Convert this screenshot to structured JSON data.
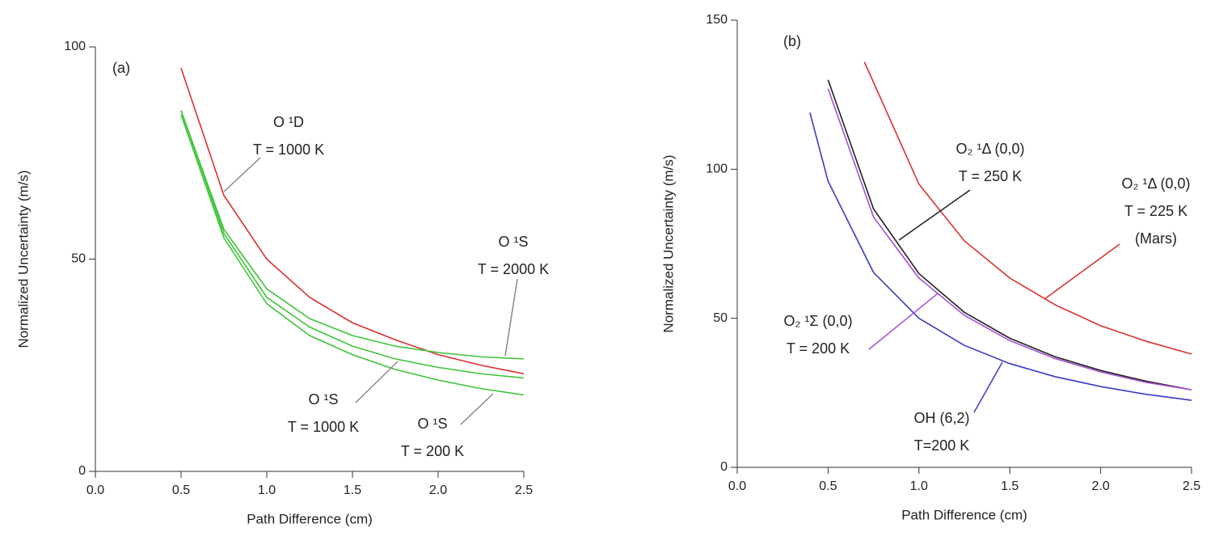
{
  "chart_data": [
    {
      "type": "line",
      "label": "(a)",
      "xlabel": "Path Difference (cm)",
      "ylabel": "Normalized Uncertainty (m/s)",
      "xlim": [
        0,
        2.5
      ],
      "ylim": [
        0,
        100
      ],
      "xticks": [
        {
          "value": 0,
          "label": "0.0"
        },
        0.5,
        {
          "value": 1,
          "label": "1.0"
        },
        1.5,
        {
          "value": 2,
          "label": "2.0"
        },
        2.5
      ],
      "yticks": [
        0,
        50,
        100
      ],
      "series": [
        {
          "color": "#d9302f",
          "x": [
            0.5,
            0.75,
            1.0,
            1.25,
            1.5,
            1.75,
            2.0,
            2.25,
            2.5
          ],
          "values": [
            95,
            65,
            50,
            41,
            35,
            31,
            27.5,
            25,
            23
          ]
        },
        {
          "color": "#3fc43a",
          "x": [
            0.5,
            0.75,
            1.0,
            1.25,
            1.5,
            1.75,
            2.0,
            2.25,
            2.5
          ],
          "values": [
            85,
            57,
            43,
            36,
            32,
            29.5,
            28,
            27,
            26.5
          ]
        },
        {
          "color": "#3fc43a",
          "x": [
            0.5,
            0.75,
            1.0,
            1.25,
            1.5,
            1.75,
            2.0,
            2.25,
            2.5
          ],
          "values": [
            85,
            56,
            41,
            34,
            29.5,
            26.5,
            24.5,
            23,
            22
          ]
        },
        {
          "color": "#3fc43a",
          "x": [
            0.5,
            0.75,
            1.0,
            1.25,
            1.5,
            1.75,
            2.0,
            2.25,
            2.5
          ],
          "values": [
            84,
            55,
            39.5,
            32,
            27.5,
            24,
            21.5,
            19.5,
            18
          ]
        }
      ],
      "annotations": [
        {
          "lines": [
            "O ¹D",
            "T = 1000 K"
          ],
          "color": "#888888"
        },
        {
          "lines": [
            "O ¹S",
            "T = 2000 K"
          ],
          "color": "#888888"
        },
        {
          "lines": [
            "O ¹S",
            "T = 1000 K"
          ],
          "color": "#888888"
        },
        {
          "lines": [
            "O ¹S",
            "T = 200 K"
          ],
          "color": "#888888"
        }
      ]
    },
    {
      "type": "line",
      "label": "(b)",
      "xlabel": "Path Difference (cm)",
      "ylabel": "Normalized Uncertainty (m/s)",
      "xlim": [
        0,
        2.5
      ],
      "ylim": [
        0,
        150
      ],
      "xticks": [
        {
          "value": 0,
          "label": "0.0"
        },
        0.5,
        {
          "value": 1,
          "label": "1.0"
        },
        1.5,
        {
          "value": 2,
          "label": "2.0"
        },
        2.5
      ],
      "yticks": [
        0,
        50,
        100,
        150
      ],
      "series": [
        {
          "color": "#d9302f",
          "x": [
            0.7,
            1.0,
            1.25,
            1.5,
            1.75,
            2.0,
            2.25,
            2.5
          ],
          "values": [
            136,
            95,
            76,
            63.5,
            54.5,
            47.5,
            42.3,
            38
          ]
        },
        {
          "color": "#222222",
          "x": [
            0.5,
            0.75,
            1.0,
            1.25,
            1.5,
            1.75,
            2.0,
            2.25,
            2.5
          ],
          "values": [
            130,
            86.7,
            65,
            52,
            43.3,
            37.1,
            32.5,
            28.9,
            26
          ]
        },
        {
          "color": "#a64fd8",
          "x": [
            0.5,
            0.75,
            1.0,
            1.25,
            1.5,
            1.75,
            2.0,
            2.25,
            2.5
          ],
          "values": [
            127,
            84,
            63.5,
            51,
            42.5,
            36.5,
            32,
            28.5,
            26
          ]
        },
        {
          "color": "#3a3ac4",
          "x": [
            0.4,
            0.5,
            0.75,
            1.0,
            1.25,
            1.5,
            1.75,
            2.0,
            2.25,
            2.5
          ],
          "values": [
            119,
            96,
            65.4,
            50,
            40.9,
            34.8,
            30.4,
            27.1,
            24.5,
            22.5
          ]
        }
      ],
      "annotations": [
        {
          "lines": [
            "O₂ ¹Δ (0,0)",
            "T = 250 K"
          ],
          "color": "#222222"
        },
        {
          "lines": [
            "O₂ ¹Δ (0,0)",
            "T = 225 K",
            "(Mars)"
          ],
          "color": "#d9302f"
        },
        {
          "lines": [
            "O₂ ¹Σ (0,0)",
            "T = 200 K"
          ],
          "color": "#a64fd8"
        },
        {
          "lines": [
            "OH (6,2)",
            "T=200 K"
          ],
          "color": "#3a3ac4"
        }
      ]
    }
  ]
}
